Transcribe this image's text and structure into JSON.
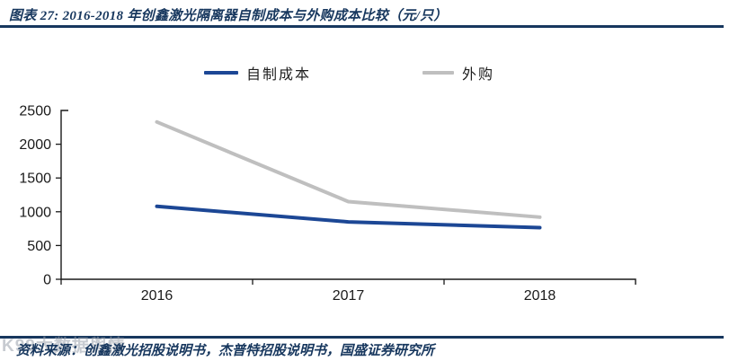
{
  "header": {
    "title": "图表 27: 2016-2018 年创鑫激光隔离器自制成本与外购成本比较（元/只）"
  },
  "legend": {
    "items": [
      {
        "label": "自制成本",
        "color": "#1C4795"
      },
      {
        "label": "外购",
        "color": "#BFBFBF"
      }
    ]
  },
  "chart_data": {
    "type": "line",
    "title": "2016-2018 年创鑫激光隔离器自制成本与外购成本比较（元/只）",
    "categories": [
      "2016",
      "2017",
      "2018"
    ],
    "series": [
      {
        "name": "自制成本",
        "color": "#1C4795",
        "values": [
          1080,
          850,
          765
        ]
      },
      {
        "name": "外购",
        "color": "#BFBFBF",
        "values": [
          2330,
          1150,
          920
        ]
      }
    ],
    "xlabel": "",
    "ylabel": "",
    "ylim": [
      0,
      2500
    ],
    "yticks": [
      0,
      500,
      1000,
      1500,
      2000,
      2500
    ],
    "grid": false,
    "legend_position": "top"
  },
  "footer": {
    "source_label": "资料来源：创鑫激光招股说明书，杰普特招股说明书，国盛证券研究所"
  },
  "watermark": {
    "text": "K99大数据舆情"
  },
  "colors": {
    "navy": "#17375E",
    "axis": "#1A1A1A"
  }
}
